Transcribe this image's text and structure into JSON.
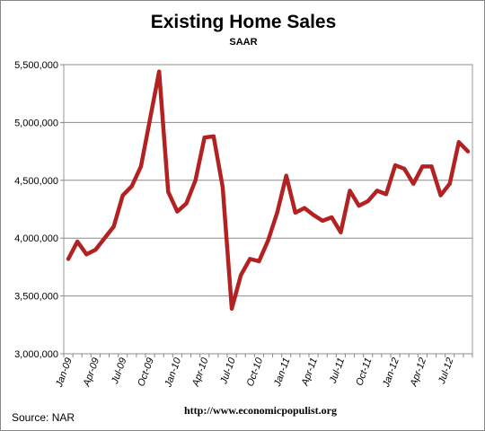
{
  "chart_data": {
    "type": "line",
    "title": "Existing Home Sales",
    "subtitle": "SAAR",
    "xlabel": "",
    "ylabel": "",
    "ylim": [
      3000000,
      5500000
    ],
    "yticks": [
      "3,000,000",
      "3,500,000",
      "4,000,000",
      "4,500,000",
      "5,000,000",
      "5,500,000"
    ],
    "grid": "horizontal",
    "categories": [
      "Jan-09",
      "Feb-09",
      "Mar-09",
      "Apr-09",
      "May-09",
      "Jun-09",
      "Jul-09",
      "Aug-09",
      "Sep-09",
      "Oct-09",
      "Nov-09",
      "Dec-09",
      "Jan-10",
      "Feb-10",
      "Mar-10",
      "Apr-10",
      "May-10",
      "Jun-10",
      "Jul-10",
      "Aug-10",
      "Sep-10",
      "Oct-10",
      "Nov-10",
      "Dec-10",
      "Jan-11",
      "Feb-11",
      "Mar-11",
      "Apr-11",
      "May-11",
      "Jun-11",
      "Jul-11",
      "Aug-11",
      "Sep-11",
      "Oct-11",
      "Nov-11",
      "Dec-11",
      "Jan-12",
      "Feb-12",
      "Mar-12",
      "Apr-12",
      "May-12",
      "Jun-12",
      "Jul-12",
      "Aug-12",
      "Sep-12"
    ],
    "xtick_labels": [
      "Jan-09",
      "Apr-09",
      "Jul-09",
      "Oct-09",
      "Jan-10",
      "Apr-10",
      "Jul-10",
      "Oct-10",
      "Jan-11",
      "Apr-11",
      "Jul-11",
      "Oct-11",
      "Jan-12",
      "Apr-12",
      "Jul-12"
    ],
    "series": [
      {
        "name": "",
        "color": "#b22222",
        "values": [
          3820000,
          3970000,
          3860000,
          3900000,
          4000000,
          4100000,
          4370000,
          4450000,
          4620000,
          5030000,
          5440000,
          4400000,
          4230000,
          4300000,
          4500000,
          4870000,
          4880000,
          4440000,
          3390000,
          3680000,
          3820000,
          3800000,
          3980000,
          4220000,
          4540000,
          4220000,
          4260000,
          4200000,
          4150000,
          4180000,
          4050000,
          4410000,
          4280000,
          4320000,
          4410000,
          4380000,
          4630000,
          4600000,
          4470000,
          4620000,
          4620000,
          4370000,
          4470000,
          4830000,
          4750000
        ]
      }
    ]
  },
  "footer": {
    "source": "Source:  NAR",
    "url": "http://www.economicpopulist.org"
  }
}
